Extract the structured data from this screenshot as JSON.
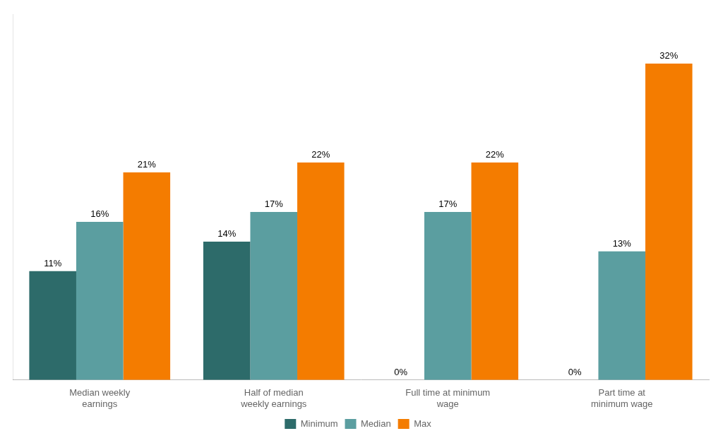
{
  "chart_data": {
    "type": "bar",
    "categories": [
      "Median weekly\nearnings",
      "Half of median\nweekly earnings",
      "Full time at minimum\nwage",
      "Part time at\nminimum wage"
    ],
    "series": [
      {
        "name": "Minimum",
        "color": "#2d6b6a",
        "values": [
          11,
          14,
          0,
          0
        ],
        "value_labels": [
          "11%",
          "14%",
          "0%",
          "0%"
        ]
      },
      {
        "name": "Median",
        "color": "#5b9ea0",
        "values": [
          16,
          17,
          17,
          13
        ],
        "value_labels": [
          "16%",
          "17%",
          "17%",
          "13%"
        ]
      },
      {
        "name": "Max",
        "color": "#f47c00",
        "values": [
          21,
          22,
          22,
          32
        ],
        "value_labels": [
          "21%",
          "22%",
          "22%",
          "32%"
        ]
      }
    ],
    "ylim": [
      0,
      37
    ],
    "grid": false,
    "legend": "bottom",
    "data_labels": true,
    "tick_labels": "x"
  }
}
